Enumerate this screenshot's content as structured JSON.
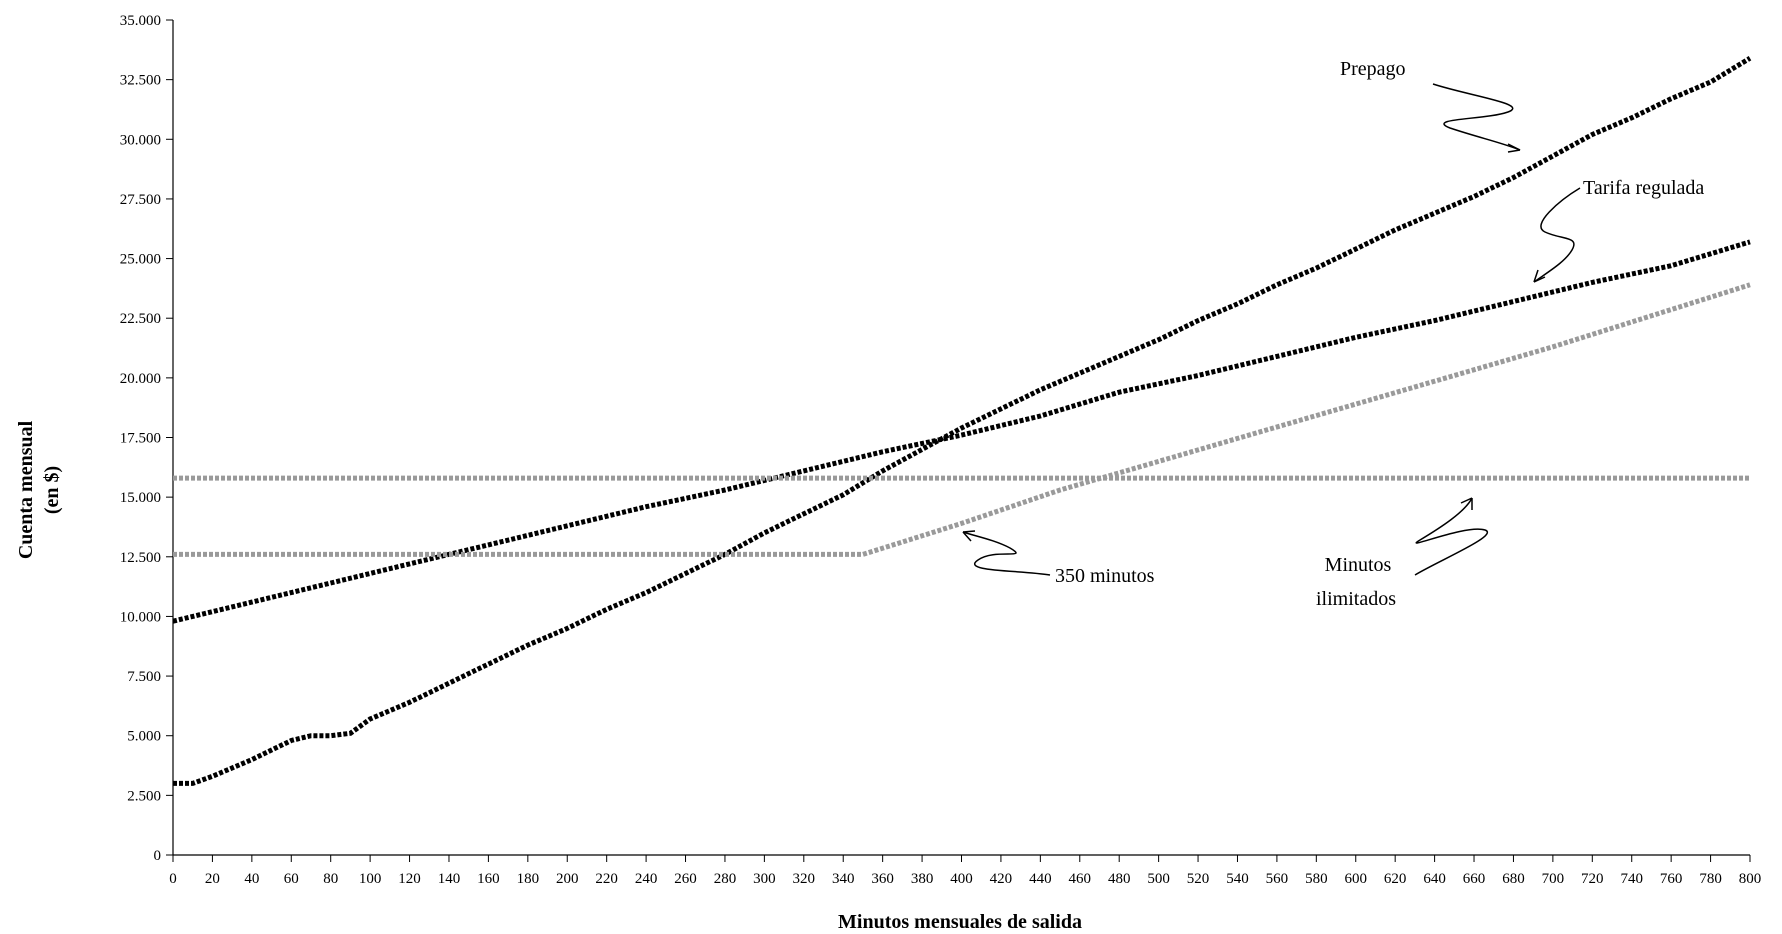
{
  "chart_data": {
    "type": "line",
    "xlabel": "Minutos mensuales de salida",
    "ylabel_lines": [
      "Cuenta mensual",
      "(en $)"
    ],
    "xlim": [
      0,
      800
    ],
    "ylim": [
      0,
      35000
    ],
    "x_ticks": [
      0,
      20,
      40,
      60,
      80,
      100,
      120,
      140,
      160,
      180,
      200,
      220,
      240,
      260,
      280,
      300,
      320,
      340,
      360,
      380,
      400,
      420,
      440,
      460,
      480,
      500,
      520,
      540,
      560,
      580,
      600,
      620,
      640,
      660,
      680,
      700,
      720,
      740,
      760,
      780,
      800
    ],
    "y_ticks": [
      0,
      2500,
      5000,
      7500,
      10000,
      12500,
      15000,
      17500,
      20000,
      22500,
      25000,
      27500,
      30000,
      32500,
      35000
    ],
    "y_tick_labels": [
      "0",
      "2.500",
      "5.000",
      "7.500",
      "10.000",
      "12.500",
      "15.000",
      "17.500",
      "20.000",
      "22.500",
      "25.000",
      "27.500",
      "30.000",
      "32.500",
      "35.000"
    ],
    "grid": false,
    "legend": "none",
    "series": [
      {
        "name": "Prepago",
        "color": "#000000",
        "x": [
          0,
          10,
          20,
          40,
          60,
          70,
          80,
          90,
          100,
          120,
          140,
          160,
          180,
          200,
          220,
          240,
          260,
          280,
          300,
          320,
          340,
          360,
          380,
          400,
          420,
          440,
          460,
          480,
          500,
          520,
          540,
          560,
          580,
          600,
          620,
          640,
          660,
          680,
          700,
          720,
          740,
          760,
          780,
          800
        ],
        "y": [
          3000,
          3000,
          3300,
          4000,
          4800,
          5000,
          5000,
          5100,
          5700,
          6400,
          7200,
          8000,
          8800,
          9500,
          10300,
          11000,
          11800,
          12600,
          13500,
          14300,
          15100,
          16100,
          17000,
          17900,
          18700,
          19500,
          20200,
          20900,
          21600,
          22400,
          23100,
          23900,
          24600,
          25400,
          26200,
          26900,
          27600,
          28400,
          29300,
          30200,
          30900,
          31700,
          32400,
          33400
        ]
      },
      {
        "name": "Tarifa regulada",
        "color": "#000000",
        "x": [
          0,
          40,
          80,
          120,
          160,
          200,
          240,
          280,
          320,
          360,
          400,
          440,
          480,
          520,
          560,
          600,
          640,
          680,
          720,
          760,
          800
        ],
        "y": [
          9800,
          10600,
          11400,
          12200,
          13000,
          13800,
          14600,
          15300,
          16100,
          16900,
          17600,
          18400,
          19400,
          20100,
          20900,
          21700,
          22400,
          23200,
          24000,
          24700,
          25700
        ]
      },
      {
        "name": "350 minutos",
        "color": "#9a9a9a",
        "x": [
          0,
          350,
          400,
          450,
          500,
          550,
          600,
          650,
          700,
          750,
          800
        ],
        "y": [
          12600,
          12600,
          13900,
          15300,
          16500,
          17700,
          18900,
          20100,
          21300,
          22600,
          23900
        ]
      },
      {
        "name": "Minutos ilimitados",
        "color": "#9a9a9a",
        "x": [
          0,
          800
        ],
        "y": [
          15800,
          15800
        ]
      }
    ],
    "annotations": [
      {
        "text": "Prepago"
      },
      {
        "text": "Tarifa regulada"
      },
      {
        "text": "350 minutos"
      },
      {
        "text_lines": [
          "Minutos",
          "ilimitados"
        ]
      }
    ]
  }
}
